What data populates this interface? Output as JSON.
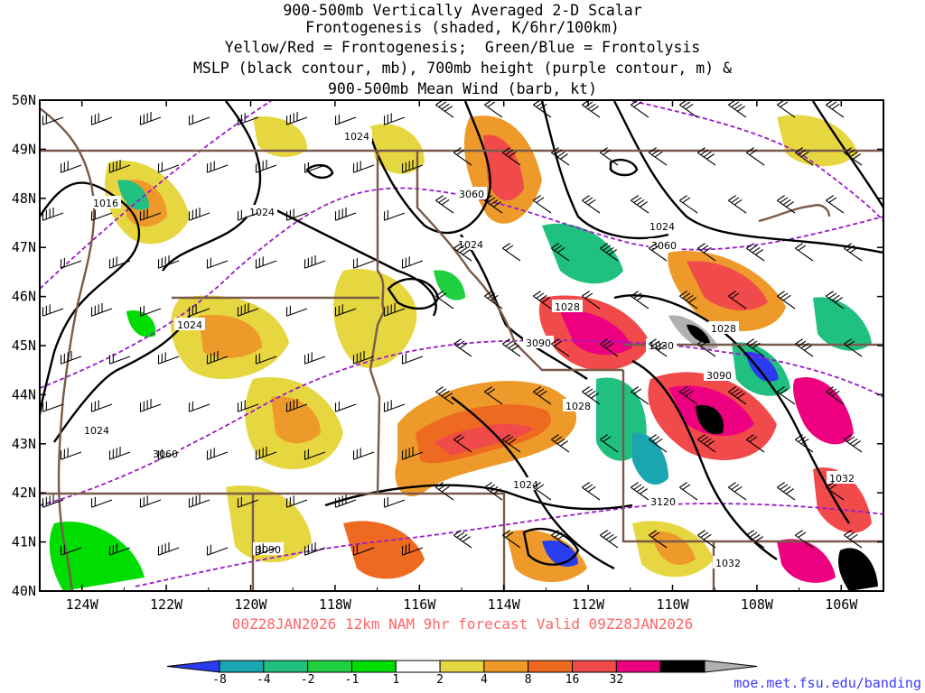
{
  "title_lines": [
    "900-500mb Vertically Averaged 2-D Scalar",
    "Frontogenesis (shaded, K/6hr/100km)",
    "Yellow/Red = Frontogenesis;  Green/Blue = Frontolysis",
    "MSLP (black contour, mb), 700mb height (purple contour, m) &",
    "900-500mb Mean Wind (barb, kt)"
  ],
  "valid_line": "00Z28JAN2026 12km NAM 9hr forecast Valid 09Z28JAN2026",
  "source": "moe.met.fsu.edu/banding",
  "axes": {
    "lon_range": [
      -125,
      -105
    ],
    "lat_range": [
      40,
      50
    ],
    "lon_labels": [
      "124W",
      "122W",
      "120W",
      "118W",
      "116W",
      "114W",
      "112W",
      "110W",
      "108W",
      "106W"
    ],
    "lat_labels": [
      "50N",
      "49N",
      "48N",
      "47N",
      "46N",
      "45N",
      "44N",
      "43N",
      "42N",
      "41N",
      "40N"
    ]
  },
  "colorbar": {
    "labels": [
      "-8",
      "-4",
      "-2",
      "-1",
      "1",
      "2",
      "4",
      "8",
      "16",
      "32"
    ],
    "colors": [
      "#2a3cf0",
      "#1aa6b0",
      "#20c080",
      "#20d040",
      "#00dd00",
      "#ffffff",
      "#e6d640",
      "#ee9a2a",
      "#ee6a20",
      "#f04a4a",
      "#ec0080",
      "#000000",
      "#b0b0b0"
    ]
  },
  "mslp_labels": [
    "1016",
    "1024",
    "1024",
    "1024",
    "1024",
    "1024",
    "1028",
    "1028",
    "1030",
    "1024",
    "1032",
    "1032",
    "1024",
    "1028"
  ],
  "height_labels": [
    "3060",
    "3060",
    "3060",
    "3090",
    "3090",
    "3090",
    "3120"
  ],
  "colors": {
    "state_border": "#7a5a4a",
    "mslp": "#000000",
    "height": "#9a1acc",
    "frontogenesis": "#ee6a20",
    "frontolysis": "#20c080"
  }
}
